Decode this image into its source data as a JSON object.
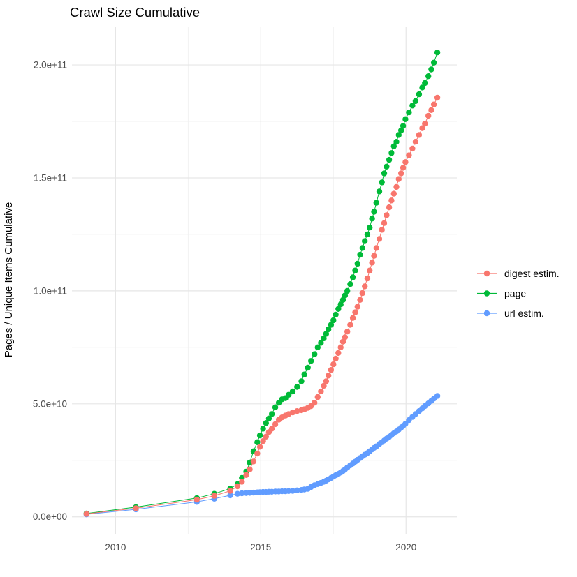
{
  "chart_data": {
    "type": "scatter",
    "title": "Crawl Size Cumulative",
    "xlabel": "",
    "ylabel": "Pages / Unique Items Cumulative",
    "legend_position": "right",
    "grid": true,
    "background_color": "#FFFFFF",
    "grid_major_color": "#E6E6E6",
    "grid_minor_color": "#F0F0F0",
    "axis_text_color": "#4D4D4D",
    "title_color": "#000000",
    "xlim": [
      2008.5,
      2021.75
    ],
    "ylim": [
      -7500000000.0,
      217000000000.0
    ],
    "x_ticks": [
      {
        "label": "2010",
        "value": 2010
      },
      {
        "label": "2015",
        "value": 2015
      },
      {
        "label": "2020",
        "value": 2020
      }
    ],
    "x_minor": [
      2012.5,
      2017.5
    ],
    "y_ticks": [
      {
        "label": "0.0e+00",
        "value": 0
      },
      {
        "label": "5.0e+10",
        "value": 50000000000.0
      },
      {
        "label": "1.0e+11",
        "value": 100000000000.0
      },
      {
        "label": "1.5e+11",
        "value": 150000000000.0
      },
      {
        "label": "2.0e+11",
        "value": 200000000000.0
      }
    ],
    "y_minor": [
      25000000000.0,
      75000000000.0,
      125000000000.0,
      175000000000.0
    ],
    "x_years": [
      2009.0,
      2010.7,
      2012.8,
      2013.4,
      2013.95,
      2014.2,
      2014.35,
      2014.5,
      2014.62,
      2014.75,
      2014.88,
      2014.97,
      2015.08,
      2015.18,
      2015.28,
      2015.38,
      2015.5,
      2015.62,
      2015.73,
      2015.85,
      2015.96,
      2016.1,
      2016.25,
      2016.4,
      2016.5,
      2016.62,
      2016.73,
      2016.85,
      2016.96,
      2017.07,
      2017.17,
      2017.25,
      2017.33,
      2017.42,
      2017.5,
      2017.58,
      2017.67,
      2017.75,
      2017.83,
      2017.9,
      2017.98,
      2018.08,
      2018.17,
      2018.25,
      2018.33,
      2018.42,
      2018.5,
      2018.58,
      2018.67,
      2018.75,
      2018.83,
      2018.9,
      2018.98,
      2019.08,
      2019.17,
      2019.25,
      2019.33,
      2019.42,
      2019.5,
      2019.58,
      2019.67,
      2019.75,
      2019.83,
      2019.9,
      2019.98,
      2020.1,
      2020.22,
      2020.33,
      2020.45,
      2020.56,
      2020.65,
      2020.77,
      2020.87,
      2020.96,
      2021.08
    ],
    "series": [
      {
        "name": "digest estim.",
        "color": "#F8766D",
        "values": [
          1300000000.0,
          3800000000.0,
          7600000000.0,
          9300000000.0,
          11500000000.0,
          13500000000.0,
          15500000000.0,
          18500000000.0,
          21000000000.0,
          24500000000.0,
          28000000000.0,
          31000000000.0,
          33500000000.0,
          35500000000.0,
          37500000000.0,
          39000000000.0,
          41000000000.0,
          43000000000.0,
          44000000000.0,
          44800000000.0,
          45500000000.0,
          46200000000.0,
          46800000000.0,
          47200000000.0,
          47600000000.0,
          48200000000.0,
          49000000000.0,
          50500000000.0,
          53000000000.0,
          55500000000.0,
          58000000000.0,
          60000000000.0,
          62500000000.0,
          65000000000.0,
          67500000000.0,
          70000000000.0,
          72500000000.0,
          75000000000.0,
          77500000000.0,
          79500000000.0,
          82000000000.0,
          85000000000.0,
          88000000000.0,
          90500000000.0,
          93000000000.0,
          96000000000.0,
          99000000000.0,
          102000000000.0,
          105500000000.0,
          109000000000.0,
          112500000000.0,
          115500000000.0,
          119000000000.0,
          123000000000.0,
          127000000000.0,
          130000000000.0,
          133500000000.0,
          137000000000.0,
          140000000000.0,
          143000000000.0,
          146000000000.0,
          149500000000.0,
          152000000000.0,
          154500000000.0,
          157000000000.0,
          160000000000.0,
          163000000000.0,
          166000000000.0,
          169000000000.0,
          172000000000.0,
          174000000000.0,
          177500000000.0,
          180000000000.0,
          182500000000.0,
          185500000000.0
        ]
      },
      {
        "name": "page",
        "color": "#00BA38",
        "values": [
          1500000000.0,
          4300000000.0,
          8300000000.0,
          10200000000.0,
          12500000000.0,
          14500000000.0,
          17200000000.0,
          20000000000.0,
          24000000000.0,
          29000000000.0,
          33000000000.0,
          36000000000.0,
          39000000000.0,
          41500000000.0,
          43500000000.0,
          45500000000.0,
          48500000000.0,
          50500000000.0,
          52000000000.0,
          52500000000.0,
          54000000000.0,
          55500000000.0,
          57500000000.0,
          60000000000.0,
          63000000000.0,
          66000000000.0,
          69000000000.0,
          72000000000.0,
          75000000000.0,
          77000000000.0,
          79000000000.0,
          81000000000.0,
          83000000000.0,
          85000000000.0,
          87000000000.0,
          89500000000.0,
          92000000000.0,
          94000000000.0,
          96000000000.0,
          98000000000.0,
          100000000000.0,
          103000000000.0,
          106000000000.0,
          109000000000.0,
          112000000000.0,
          116000000000.0,
          119000000000.0,
          122000000000.0,
          125000000000.0,
          128000000000.0,
          132000000000.0,
          135000000000.0,
          139000000000.0,
          144000000000.0,
          148000000000.0,
          152000000000.0,
          155000000000.0,
          158000000000.0,
          161000000000.0,
          164000000000.0,
          166000000000.0,
          169000000000.0,
          171000000000.0,
          173000000000.0,
          176000000000.0,
          179000000000.0,
          182000000000.0,
          184000000000.0,
          187000000000.0,
          190000000000.0,
          192000000000.0,
          195000000000.0,
          198000000000.0,
          201000000000.0,
          205500000000.0
        ]
      },
      {
        "name": "url estim.",
        "color": "#619CFF",
        "values": [
          1100000000.0,
          3300000000.0,
          6600000000.0,
          8000000000.0,
          9500000000.0,
          10200000000.0,
          10400000000.0,
          10500000000.0,
          10600000000.0,
          10700000000.0,
          10800000000.0,
          10900000000.0,
          11000000000.0,
          11000000000.0,
          11100000000.0,
          11100000000.0,
          11200000000.0,
          11200000000.0,
          11300000000.0,
          11300000000.0,
          11400000000.0,
          11500000000.0,
          11700000000.0,
          11900000000.0,
          12100000000.0,
          12400000000.0,
          13200000000.0,
          14000000000.0,
          14500000000.0,
          15000000000.0,
          15500000000.0,
          16000000000.0,
          16600000000.0,
          17200000000.0,
          17800000000.0,
          18400000000.0,
          19000000000.0,
          19600000000.0,
          20300000000.0,
          21000000000.0,
          21800000000.0,
          22800000000.0,
          23600000000.0,
          24400000000.0,
          25200000000.0,
          26000000000.0,
          26800000000.0,
          27500000000.0,
          28200000000.0,
          29000000000.0,
          29800000000.0,
          30500000000.0,
          31200000000.0,
          32200000000.0,
          33000000000.0,
          33800000000.0,
          34600000000.0,
          35400000000.0,
          36200000000.0,
          37000000000.0,
          37800000000.0,
          38600000000.0,
          39500000000.0,
          40300000000.0,
          41200000000.0,
          42800000000.0,
          44200000000.0,
          45500000000.0,
          46800000000.0,
          48000000000.0,
          49000000000.0,
          50200000000.0,
          51300000000.0,
          52300000000.0,
          53500000000.0
        ]
      }
    ],
    "draw_order": [
      "page",
      "url estim.",
      "digest estim."
    ],
    "point_radius": 4.2
  }
}
